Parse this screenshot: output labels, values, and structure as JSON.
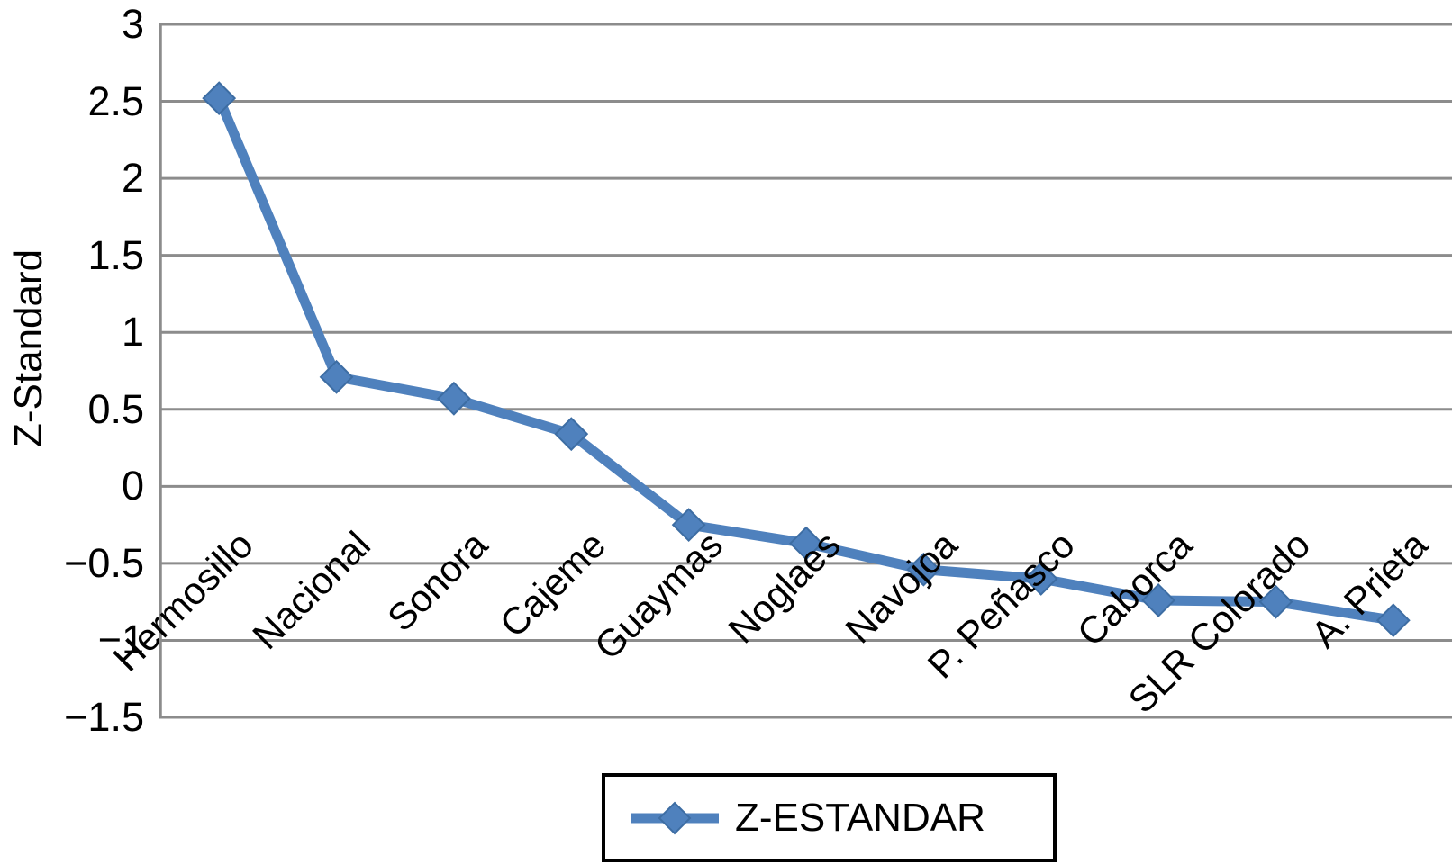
{
  "chart_data": {
    "type": "line",
    "title": "",
    "xlabel": "",
    "ylabel": "Z-Standard",
    "categories": [
      "Hermosillo",
      "Nacional",
      "Sonora",
      "Cajeme",
      "Guaymas",
      "Noglaes",
      "Navojoa",
      "P. Peñasco",
      "Caborca",
      "SLR Colorado",
      "A. Prieta"
    ],
    "series": [
      {
        "name": "Z-ESTANDAR",
        "values": [
          2.52,
          0.71,
          0.57,
          0.34,
          -0.25,
          -0.37,
          -0.54,
          -0.6,
          -0.74,
          -0.75,
          -0.87
        ]
      }
    ],
    "ylim": [
      -1.5,
      3
    ],
    "yticks": [
      3,
      2.5,
      2,
      1.5,
      1,
      0.5,
      0,
      -0.5,
      -1,
      -1.5
    ],
    "grid": true,
    "marker": "diamond",
    "legend_position": "bottom",
    "colors": {
      "series": "#4F81BD",
      "marker_edge": "#3D6DA3",
      "gridline": "#8C8C8C",
      "text": "#000000",
      "legend_border": "#000000",
      "background": "#FFFFFF"
    }
  }
}
